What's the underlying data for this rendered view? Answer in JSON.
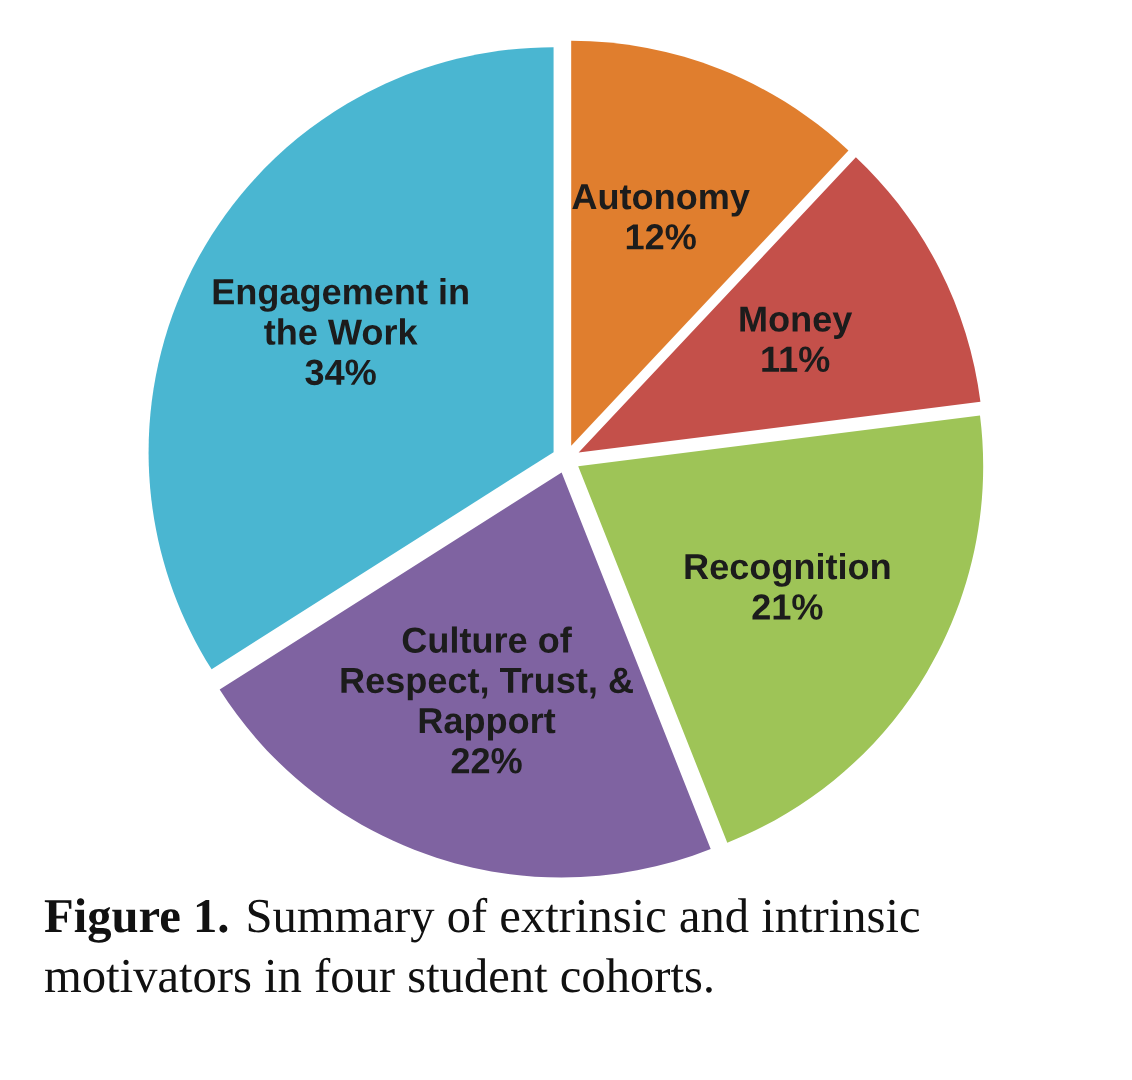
{
  "chart_data": {
    "type": "pie",
    "categories": [
      "Autonomy",
      "Money",
      "Recognition",
      "Culture of\nRespect, Trust, &\nRapport",
      "Engagement in\nthe Work"
    ],
    "values": [
      12,
      11,
      21,
      22,
      34
    ],
    "colors": [
      "#e07e2e",
      "#c4504a",
      "#9ec457",
      "#7f63a1",
      "#4ab6d1"
    ],
    "value_labels": [
      "12%",
      "11%",
      "21%",
      "22%",
      "34%"
    ],
    "annotations": [
      "Figure 1. Summary of extrinsic and intrinsic motivators in four student cohorts."
    ]
  }
}
